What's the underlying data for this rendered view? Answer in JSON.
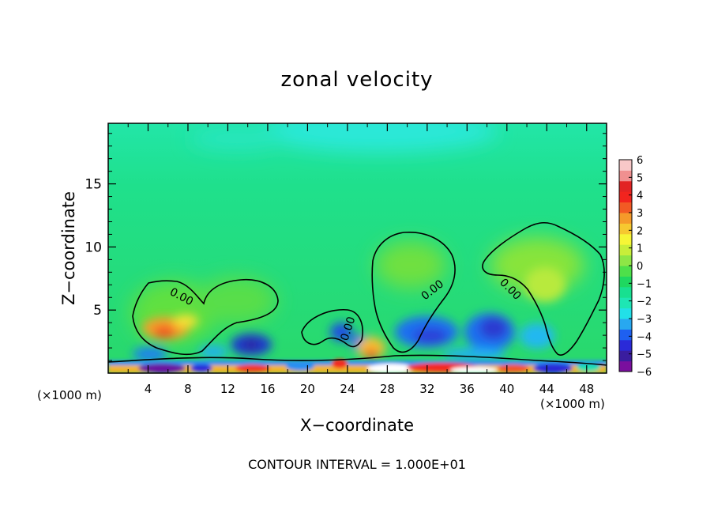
{
  "chart_data": {
    "type": "heatmap",
    "title": "zonal velocity",
    "xlabel": "X−coordinate",
    "ylabel": "Z−coordinate",
    "x_unit_left": "(×1000 m)",
    "x_unit_right": "(×1000 m)",
    "note": "CONTOUR INTERVAL = 1.000E+01",
    "xlim": [
      0,
      50
    ],
    "ylim": [
      0,
      19.8
    ],
    "x_ticks": [
      "4",
      "8",
      "12",
      "16",
      "20",
      "24",
      "28",
      "32",
      "36",
      "40",
      "44",
      "48"
    ],
    "y_ticks": [
      "5",
      "10",
      "15"
    ],
    "colorbar": {
      "ticks": [
        "6",
        "5",
        "4",
        "3",
        "2",
        "1",
        "0",
        "−1",
        "−2",
        "−3",
        "−4",
        "−5",
        "−6"
      ],
      "range": [
        -6,
        6
      ],
      "colors": [
        "#7a0f9e",
        "#3a1d9f",
        "#2a2ad8",
        "#1e60f0",
        "#28a8f0",
        "#22e0e8",
        "#1ee6b4",
        "#18e090",
        "#1fd860",
        "#4ee04a",
        "#8ee646",
        "#c8ee3a",
        "#f6f636",
        "#f6c830",
        "#f59a2a",
        "#f25a24",
        "#f2241e",
        "#e22424",
        "#f09090",
        "#f8c8c8"
      ]
    },
    "contour_labels": [
      "0.00",
      "0.00",
      "0.00",
      "0.00"
    ],
    "colors": {
      "background_field": "#1fd870",
      "upper_cyan": "#2ae8c8",
      "contour": "#000000"
    }
  }
}
